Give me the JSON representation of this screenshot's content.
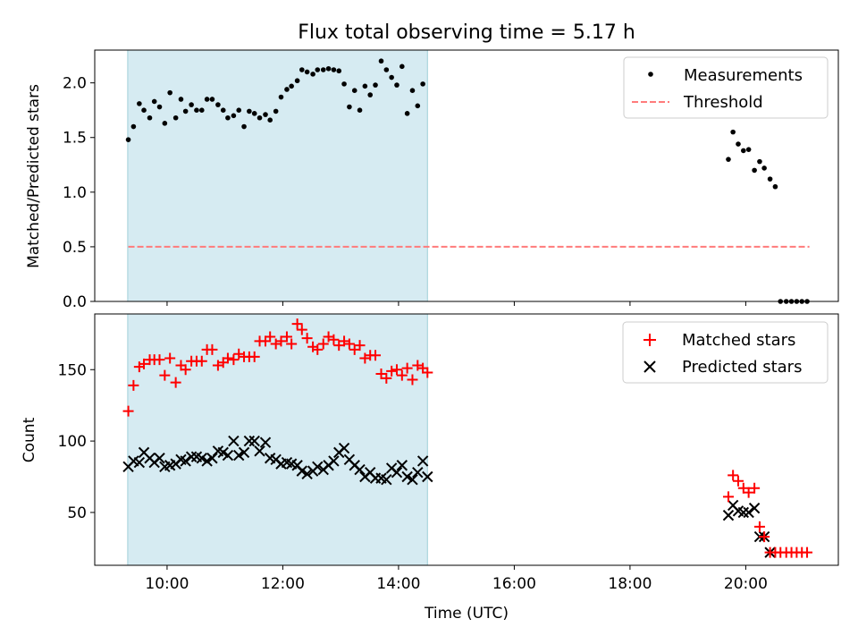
{
  "figure": {
    "title": "Flux total observing time = 5.17 h",
    "xlabel": "Time (UTC)",
    "x_ticks": [
      "10:00",
      "12:00",
      "14:00",
      "16:00",
      "18:00",
      "20:00"
    ],
    "x_tick_hours": [
      10,
      12,
      14,
      16,
      18,
      20
    ],
    "x_range_hours": [
      8.75,
      21.6
    ],
    "span_color": "#add8e6",
    "shaded_span_hours": [
      9.32,
      14.5
    ]
  },
  "chart_data": [
    {
      "type": "scatter",
      "ylabel": "Matched/Predicted stars",
      "ylim": [
        0,
        2.3
      ],
      "y_ticks": [
        0.0,
        0.5,
        1.0,
        1.5,
        2.0
      ],
      "y_tick_labels": [
        "0.0",
        "0.5",
        "1.0",
        "1.5",
        "2.0"
      ],
      "legend_position": "top-right",
      "series": [
        {
          "name": "Measurements",
          "marker": "dot",
          "color": "#000000",
          "x_hours": [
            9.33,
            9.42,
            9.52,
            9.6,
            9.7,
            9.78,
            9.87,
            9.96,
            10.05,
            10.15,
            10.24,
            10.32,
            10.42,
            10.51,
            10.6,
            10.69,
            10.78,
            10.88,
            10.97,
            11.05,
            11.15,
            11.24,
            11.33,
            11.42,
            11.51,
            11.6,
            11.7,
            11.78,
            11.88,
            11.97,
            12.07,
            12.15,
            12.25,
            12.33,
            12.42,
            12.52,
            12.6,
            12.7,
            12.79,
            12.88,
            12.97,
            13.06,
            13.15,
            13.24,
            13.33,
            13.42,
            13.51,
            13.6,
            13.7,
            13.79,
            13.88,
            13.97,
            14.06,
            14.15,
            14.24,
            14.33,
            14.42,
            19.7,
            19.78,
            19.87,
            19.96,
            20.05,
            20.15,
            20.24,
            20.32,
            20.42,
            20.51,
            20.6,
            20.7,
            20.79,
            20.88,
            20.97,
            21.06
          ],
          "y": [
            1.48,
            1.6,
            1.81,
            1.75,
            1.68,
            1.83,
            1.78,
            1.63,
            1.91,
            1.68,
            1.85,
            1.74,
            1.8,
            1.75,
            1.75,
            1.85,
            1.85,
            1.8,
            1.75,
            1.68,
            1.7,
            1.75,
            1.6,
            1.74,
            1.72,
            1.68,
            1.71,
            1.66,
            1.74,
            1.87,
            1.94,
            1.97,
            2.02,
            2.12,
            2.1,
            2.08,
            2.12,
            2.12,
            2.13,
            2.12,
            2.11,
            1.99,
            1.78,
            1.93,
            1.75,
            1.97,
            1.89,
            1.98,
            2.2,
            2.12,
            2.05,
            1.98,
            2.15,
            1.72,
            1.93,
            1.79,
            1.99,
            1.3,
            1.55,
            1.44,
            1.38,
            1.39,
            1.2,
            1.28,
            1.22,
            1.12,
            1.05,
            0,
            0,
            0,
            0,
            0,
            0
          ]
        },
        {
          "name": "Threshold",
          "type": "line",
          "style": "dashed",
          "color": "#ff7b7b",
          "x_hours": [
            9.33,
            21.1
          ],
          "y": [
            0.5,
            0.5
          ]
        }
      ]
    },
    {
      "type": "scatter",
      "ylabel": "Count",
      "ylim": [
        13,
        189
      ],
      "y_ticks": [
        50,
        100,
        150
      ],
      "y_tick_labels": [
        "50",
        "100",
        "150"
      ],
      "legend_position": "top-right",
      "series": [
        {
          "name": "Matched stars",
          "marker": "plus",
          "color": "#ff0000",
          "x_hours": [
            9.33,
            9.42,
            9.52,
            9.6,
            9.7,
            9.78,
            9.87,
            9.96,
            10.05,
            10.15,
            10.24,
            10.32,
            10.42,
            10.51,
            10.6,
            10.69,
            10.78,
            10.88,
            10.97,
            11.05,
            11.15,
            11.24,
            11.33,
            11.42,
            11.51,
            11.6,
            11.7,
            11.78,
            11.88,
            11.97,
            12.07,
            12.15,
            12.25,
            12.33,
            12.42,
            12.52,
            12.6,
            12.7,
            12.79,
            12.88,
            12.97,
            13.06,
            13.15,
            13.24,
            13.33,
            13.42,
            13.51,
            13.6,
            13.7,
            13.79,
            13.88,
            13.97,
            14.06,
            14.15,
            14.24,
            14.33,
            14.42,
            14.5,
            19.7,
            19.78,
            19.87,
            19.96,
            20.05,
            20.15,
            20.24,
            20.32,
            20.42,
            20.51,
            20.6,
            20.7,
            20.79,
            20.88,
            20.97,
            21.06
          ],
          "y": [
            121,
            139,
            152,
            154,
            157,
            157,
            157,
            146,
            158,
            141,
            153,
            150,
            156,
            156,
            156,
            164,
            164,
            153,
            155,
            158,
            157,
            161,
            159,
            159,
            159,
            170,
            170,
            173,
            168,
            170,
            173,
            168,
            182,
            178,
            172,
            166,
            164,
            168,
            173,
            171,
            167,
            170,
            168,
            164,
            167,
            158,
            160,
            160,
            147,
            144,
            149,
            150,
            146,
            151,
            143,
            153,
            151,
            148,
            61,
            76,
            72,
            67,
            64,
            67,
            40,
            33,
            22,
            22,
            22,
            22,
            22,
            22,
            22,
            22
          ]
        },
        {
          "name": "Predicted stars",
          "marker": "x",
          "color": "#000000",
          "x_hours": [
            9.33,
            9.42,
            9.52,
            9.6,
            9.7,
            9.78,
            9.87,
            9.96,
            10.05,
            10.15,
            10.24,
            10.32,
            10.42,
            10.51,
            10.6,
            10.69,
            10.78,
            10.88,
            10.97,
            11.05,
            11.15,
            11.24,
            11.33,
            11.42,
            11.51,
            11.6,
            11.7,
            11.78,
            11.88,
            11.97,
            12.07,
            12.15,
            12.25,
            12.33,
            12.42,
            12.52,
            12.6,
            12.7,
            12.79,
            12.88,
            12.97,
            13.06,
            13.15,
            13.24,
            13.33,
            13.42,
            13.51,
            13.6,
            13.7,
            13.79,
            13.88,
            13.97,
            14.06,
            14.15,
            14.24,
            14.33,
            14.42,
            14.5,
            19.7,
            19.78,
            19.87,
            19.96,
            20.05,
            20.15,
            20.24,
            20.32,
            20.42
          ],
          "y": [
            82,
            86,
            85,
            92,
            88,
            85,
            88,
            82,
            83,
            84,
            87,
            86,
            89,
            89,
            88,
            86,
            88,
            93,
            92,
            90,
            100,
            90,
            92,
            100,
            100,
            93,
            99,
            88,
            87,
            84,
            85,
            84,
            83,
            79,
            77,
            79,
            82,
            80,
            83,
            86,
            92,
            95,
            87,
            83,
            80,
            75,
            78,
            74,
            74,
            73,
            81,
            78,
            83,
            75,
            73,
            78,
            86,
            75,
            48,
            55,
            51,
            50,
            50,
            53,
            33,
            33,
            22
          ]
        }
      ]
    }
  ]
}
